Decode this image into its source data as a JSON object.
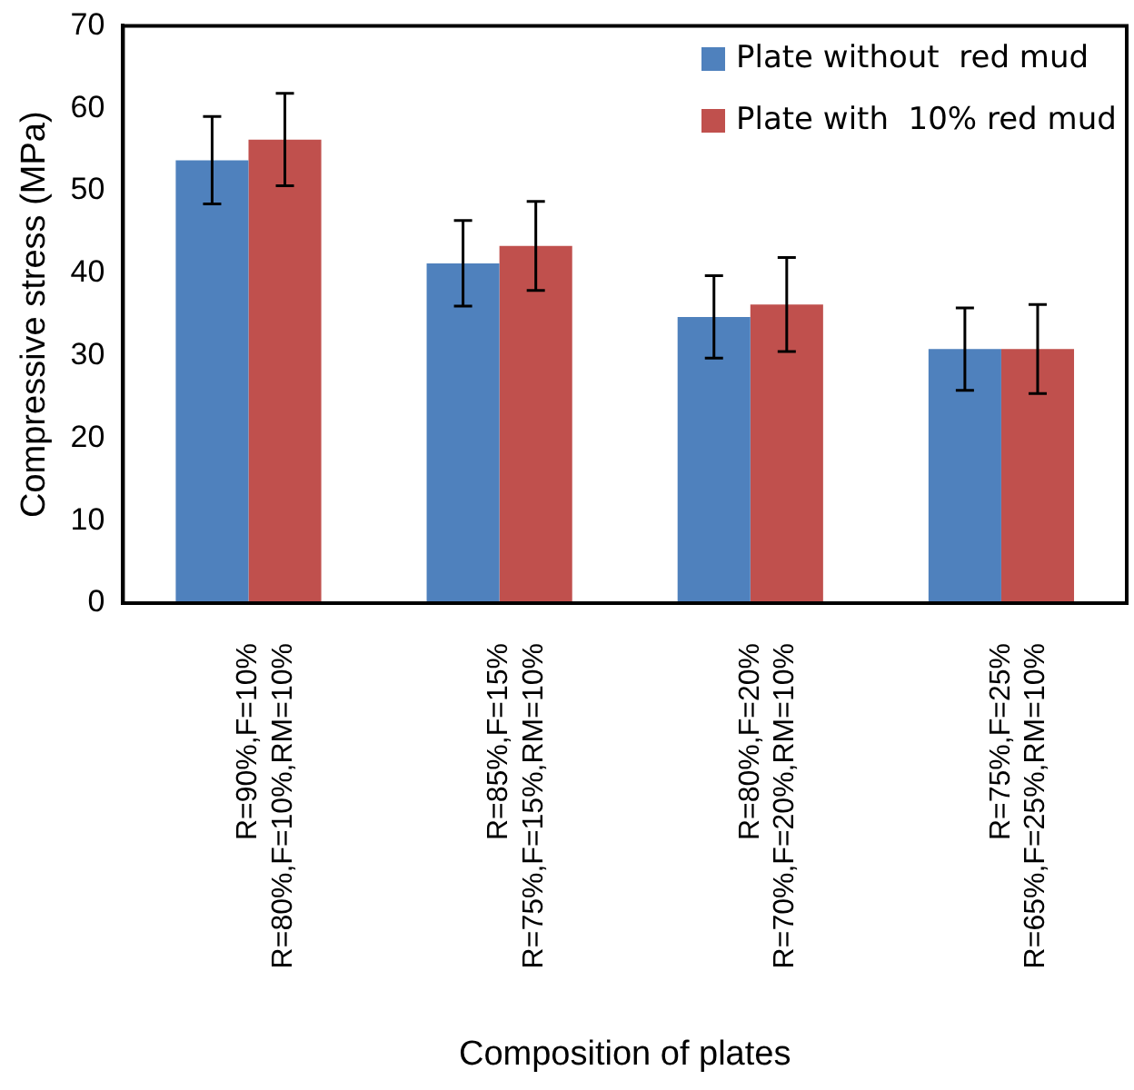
{
  "chart_data": {
    "type": "bar",
    "xlabel": "Composition of plates",
    "ylabel": "Compressive stress (MPa)",
    "categories": [
      "R=90%,F=10%\nR=80%,F=10%,RM=10%",
      "R=85%,F=15%\nR=75%,F=15%,RM=10%",
      "R=80%,F=20%\nR=70%,F=20%,RM=10%",
      "R=75%,F=25%\nR=65%,F=25%,RM=10%"
    ],
    "series": [
      {
        "name": "Plate without  red mud",
        "color": "#4f81bd",
        "values": [
          53.7,
          41.2,
          34.7,
          30.8
        ],
        "errors": [
          5.3,
          5.2,
          5.0,
          5.0
        ]
      },
      {
        "name": "Plate with  10% red mud",
        "color": "#c0504d",
        "values": [
          56.2,
          43.3,
          36.2,
          30.8
        ],
        "errors": [
          5.6,
          5.4,
          5.7,
          5.4
        ]
      }
    ],
    "ylim": [
      0,
      70
    ],
    "yticks": [
      0,
      10,
      20,
      30,
      40,
      50,
      60,
      70
    ],
    "grid": false,
    "legend": "top right"
  }
}
